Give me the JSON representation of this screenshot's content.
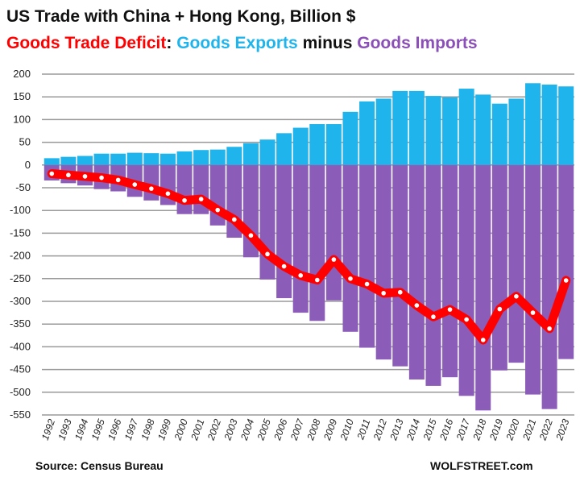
{
  "chart_data": {
    "type": "bar",
    "title": "US Trade with China + Hong Kong, Billion $",
    "subtitle_parts": [
      {
        "text": "Goods Trade Deficit",
        "color": "#ff0000"
      },
      {
        "text": ": ",
        "color": "#111111"
      },
      {
        "text": "Goods Exports",
        "color": "#1fb4ec"
      },
      {
        "text": " minus ",
        "color": "#111111"
      },
      {
        "text": "Goods Imports",
        "color": "#8b4fb8"
      }
    ],
    "xlabel": "",
    "ylabel": "",
    "ylim": [
      -550,
      200
    ],
    "yticks": [
      200,
      150,
      100,
      50,
      0,
      -50,
      -100,
      -150,
      -200,
      -250,
      -300,
      -350,
      -400,
      -450,
      -500,
      -550
    ],
    "grid": true,
    "categories": [
      "1992",
      "1993",
      "1994",
      "1995",
      "1996",
      "1997",
      "1998",
      "1999",
      "2000",
      "2001",
      "2002",
      "2003",
      "2004",
      "2005",
      "2006",
      "2007",
      "2008",
      "2009",
      "2010",
      "2011",
      "2012",
      "2013",
      "2014",
      "2015",
      "2016",
      "2017",
      "2018",
      "2019",
      "2020",
      "2021",
      "2022",
      "2023"
    ],
    "series": [
      {
        "name": "Goods Exports",
        "type": "bar",
        "color": "#1fb4ec",
        "values": [
          15,
          18,
          20,
          25,
          25,
          27,
          26,
          25,
          30,
          33,
          34,
          40,
          48,
          56,
          70,
          82,
          90,
          90,
          117,
          140,
          146,
          163,
          163,
          152,
          149,
          168,
          155,
          135,
          146,
          180,
          177,
          173
        ]
      },
      {
        "name": "Goods Imports",
        "type": "bar",
        "color": "#8b5cb8",
        "values": [
          -34,
          -40,
          -45,
          -53,
          -58,
          -70,
          -78,
          -88,
          -108,
          -108,
          -133,
          -160,
          -203,
          -252,
          -293,
          -325,
          -343,
          -298,
          -367,
          -402,
          -428,
          -443,
          -472,
          -486,
          -467,
          -508,
          -540,
          -452,
          -435,
          -505,
          -537,
          -427
        ]
      },
      {
        "name": "Goods Trade Deficit",
        "type": "line",
        "color": "#ff0000",
        "values": [
          -19,
          -22,
          -25,
          -28,
          -33,
          -43,
          -52,
          -63,
          -78,
          -75,
          -99,
          -120,
          -155,
          -196,
          -223,
          -243,
          -253,
          -208,
          -250,
          -262,
          -282,
          -280,
          -309,
          -334,
          -318,
          -340,
          -385,
          -317,
          -289,
          -325,
          -360,
          -254
        ]
      }
    ],
    "source": "Source: Census Bureau",
    "credit": "WOLFSTREET.com"
  }
}
